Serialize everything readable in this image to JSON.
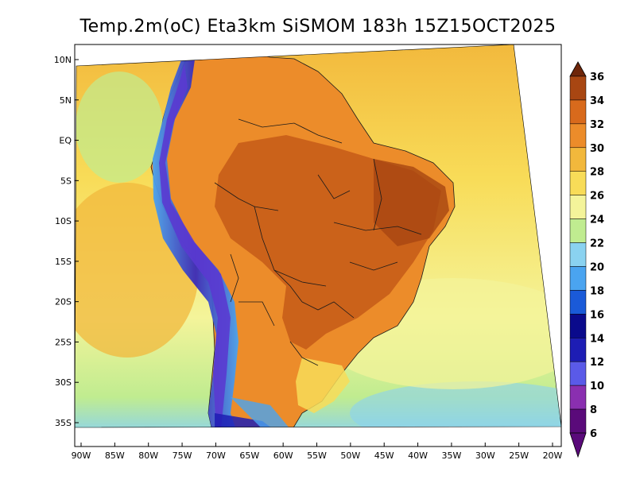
{
  "title": "Temp.2m(oC) Eta3km SiSMOM 183h 15Z15OCT2025",
  "latitude_labels": [
    {
      "label": "10N",
      "lat": 10
    },
    {
      "label": "5N",
      "lat": 5
    },
    {
      "label": "EQ",
      "lat": 0
    },
    {
      "label": "5S",
      "lat": -5
    },
    {
      "label": "10S",
      "lat": -10
    },
    {
      "label": "15S",
      "lat": -15
    },
    {
      "label": "20S",
      "lat": -20
    },
    {
      "label": "25S",
      "lat": -25
    },
    {
      "label": "30S",
      "lat": -30
    },
    {
      "label": "35S",
      "lat": -35
    }
  ],
  "longitude_labels": [
    {
      "label": "90W",
      "lon": -90
    },
    {
      "label": "85W",
      "lon": -85
    },
    {
      "label": "80W",
      "lon": -80
    },
    {
      "label": "75W",
      "lon": -75
    },
    {
      "label": "70W",
      "lon": -70
    },
    {
      "label": "65W",
      "lon": -65
    },
    {
      "label": "60W",
      "lon": -60
    },
    {
      "label": "55W",
      "lon": -55
    },
    {
      "label": "50W",
      "lon": -50
    },
    {
      "label": "45W",
      "lon": -45
    },
    {
      "label": "40W",
      "lon": -40
    },
    {
      "label": "35W",
      "lon": -35
    },
    {
      "label": "30W",
      "lon": -30
    },
    {
      "label": "25W",
      "lon": -25
    },
    {
      "label": "20W",
      "lon": -20
    }
  ],
  "colorbar": {
    "labels": [
      "6",
      "8",
      "10",
      "12",
      "14",
      "16",
      "18",
      "20",
      "22",
      "24",
      "26",
      "28",
      "30",
      "32",
      "34",
      "36"
    ],
    "levels": [
      {
        "value": 6,
        "color": "#5a0a7a"
      },
      {
        "value": 8,
        "color": "#8a2fb0"
      },
      {
        "value": 10,
        "color": "#5a5ae8"
      },
      {
        "value": 12,
        "color": "#1d1db4"
      },
      {
        "value": 14,
        "color": "#0a0a8c"
      },
      {
        "value": 16,
        "color": "#1a5ad8"
      },
      {
        "value": 18,
        "color": "#4aa4f0"
      },
      {
        "value": 20,
        "color": "#8ad2f0"
      },
      {
        "value": 22,
        "color": "#c0ec90"
      },
      {
        "value": 24,
        "color": "#f4f49a"
      },
      {
        "value": 26,
        "color": "#f8dc58"
      },
      {
        "value": 28,
        "color": "#f2b83c"
      },
      {
        "value": 30,
        "color": "#ec8c2a"
      },
      {
        "value": 32,
        "color": "#d86a1c"
      },
      {
        "value": 34,
        "color": "#a84612"
      },
      {
        "value": 36,
        "color": "#6e260a"
      }
    ]
  },
  "colors": {
    "ocean_warm": "#f8dc58",
    "ocean_mid": "#f4f49a",
    "ocean_cool": "#c0ec90",
    "land_base": "#ec8c2a",
    "land_hot": "#b84e16",
    "andes_cold": "#5a3ad0",
    "border": "#1a1a1a"
  }
}
